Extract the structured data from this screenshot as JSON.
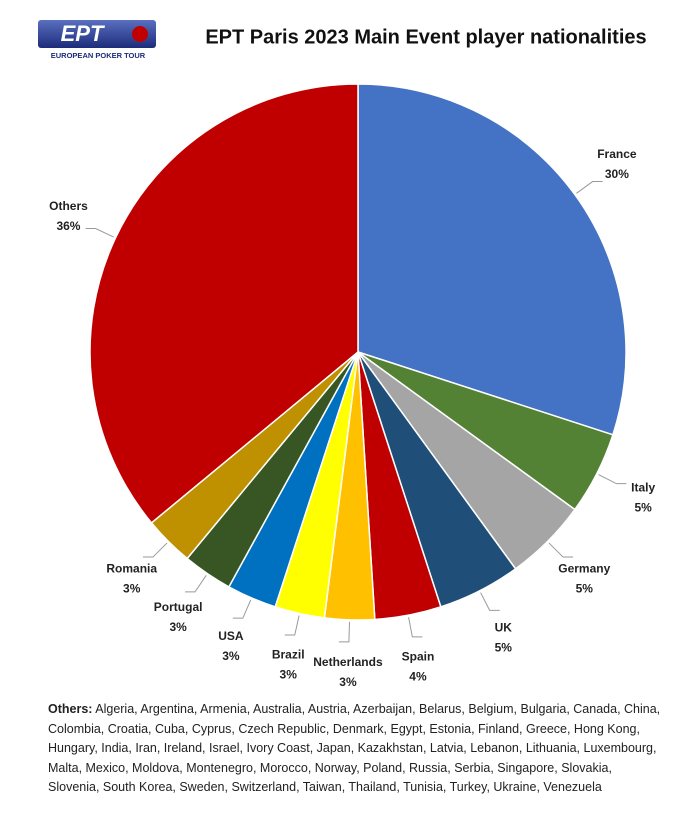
{
  "chart_data": {
    "type": "pie",
    "title": "EPT Paris 2023 Main Event player nationalities",
    "logo_text": "EPT",
    "logo_subtitle": "EUROPEAN POKER TOUR",
    "categories": [
      "France",
      "Italy",
      "Germany",
      "UK",
      "Spain",
      "Netherlands",
      "Brazil",
      "USA",
      "Portugal",
      "Romania",
      "Others"
    ],
    "values": [
      30,
      5,
      5,
      5,
      4,
      3,
      3,
      3,
      3,
      3,
      36
    ],
    "value_labels": [
      "30%",
      "5%",
      "5%",
      "5%",
      "4%",
      "3%",
      "3%",
      "3%",
      "3%",
      "3%",
      "36%"
    ],
    "colors": [
      "#4472c4",
      "#548235",
      "#a5a5a5",
      "#1f4e79",
      "#c00000",
      "#ffc000",
      "#ffff00",
      "#0070c0",
      "#375623",
      "#bf9000",
      "#c00000"
    ],
    "footnote_label": "Others:",
    "footnote": "Algeria, Argentina, Armenia, Australia, Austria, Azerbaijan, Belarus, Belgium, Bulgaria, Canada, China, Colombia, Croatia, Cuba, Cyprus, Czech Republic, Denmark, Egypt, Estonia, Finland, Greece, Hong Kong, Hungary, India, Iran, Ireland, Israel, Ivory Coast, Japan, Kazakhstan, Latvia, Lebanon, Lithuania, Luxembourg, Malta, Mexico, Moldova, Montenegro, Morocco, Norway, Poland, Russia, Serbia, Singapore, Slovakia, Slovenia, South Korea, Sweden, Switzerland, Taiwan, Thailand, Tunisia, Turkey, Ukraine, Venezuela"
  }
}
